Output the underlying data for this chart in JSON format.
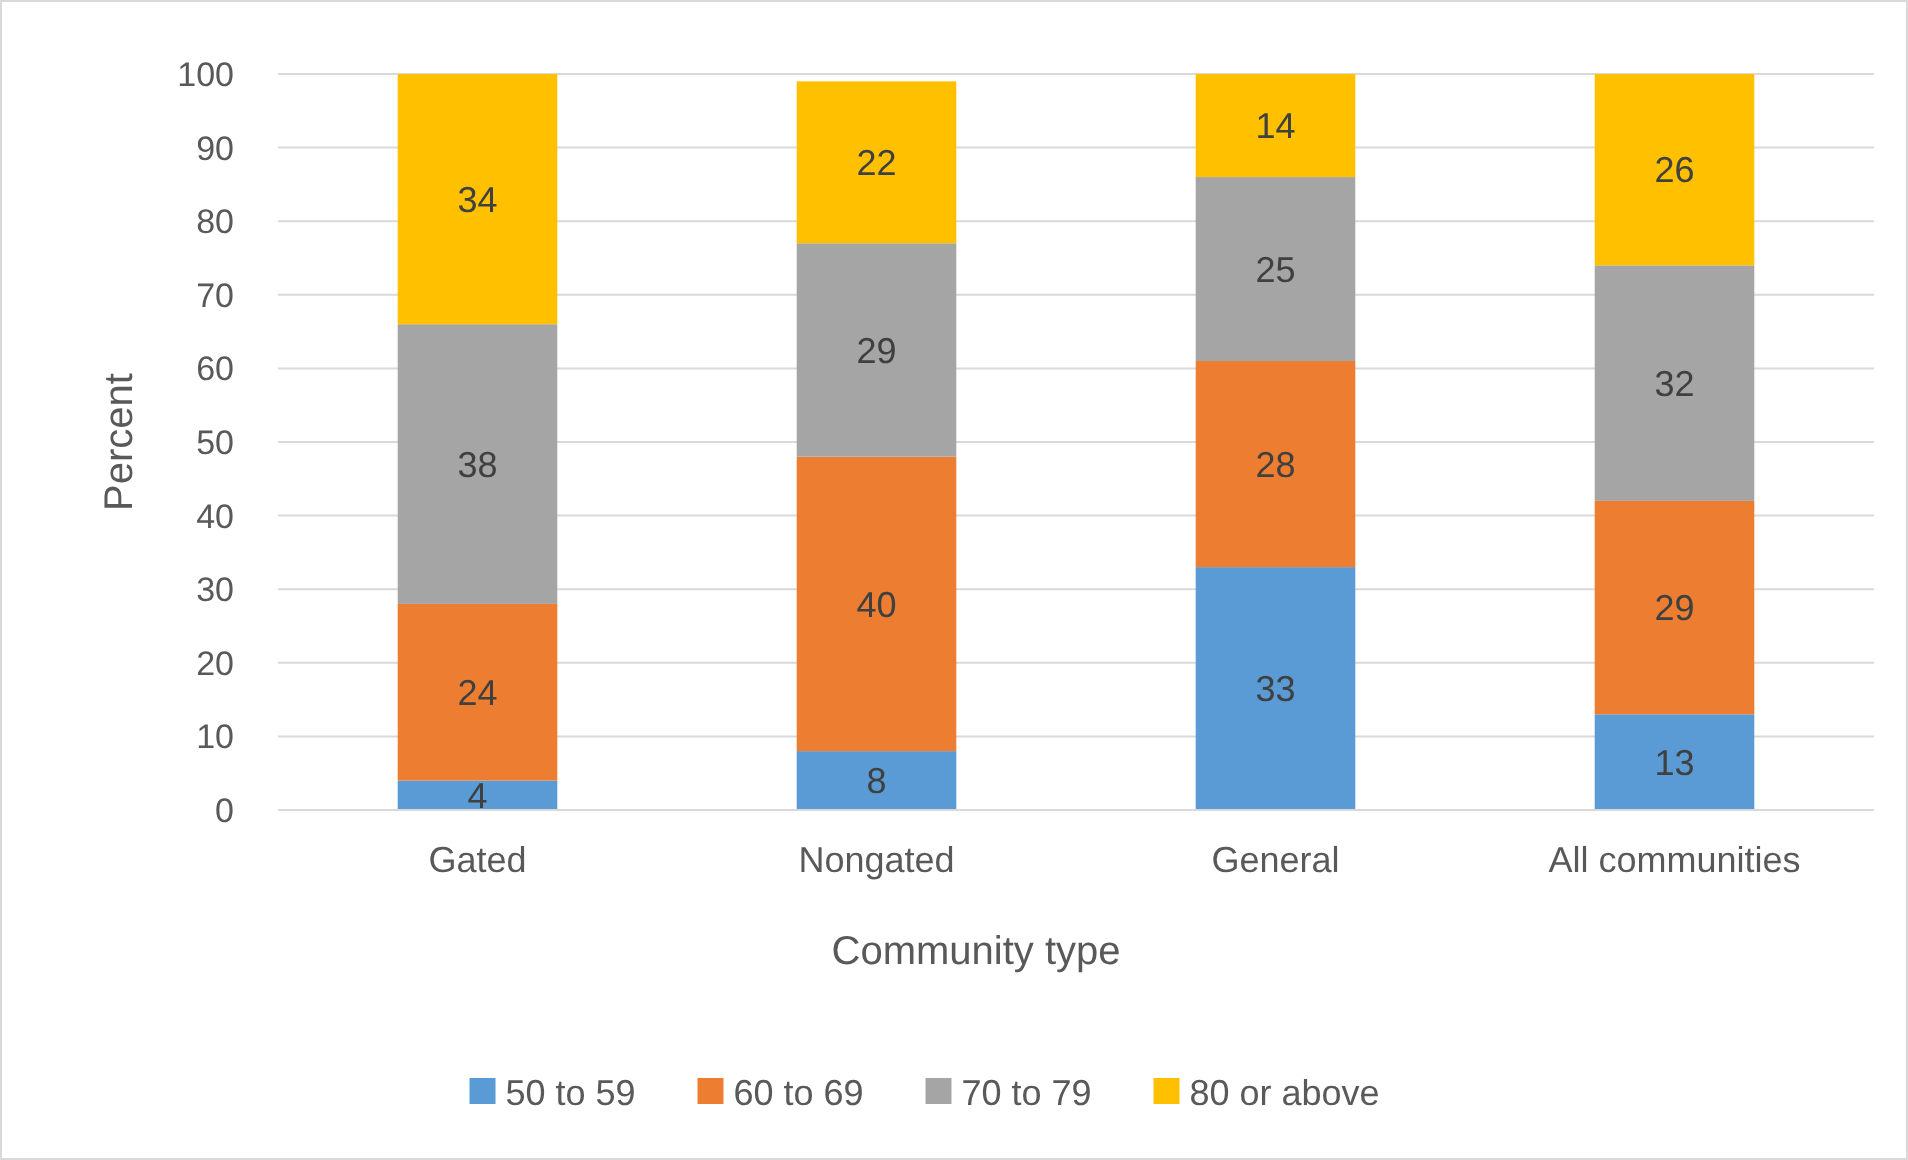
{
  "chart_data": {
    "type": "bar",
    "stacked": true,
    "xlabel": "Community type",
    "ylabel": "Percent",
    "categories": [
      "Gated",
      "Nongated",
      "General",
      "All communities"
    ],
    "series": [
      {
        "name": "50 to 59",
        "color": "#5b9bd5",
        "values": [
          4,
          8,
          33,
          13
        ]
      },
      {
        "name": "60 to 69",
        "color": "#ed7d31",
        "values": [
          24,
          40,
          28,
          29
        ]
      },
      {
        "name": "70 to 79",
        "color": "#a5a5a5",
        "values": [
          38,
          29,
          25,
          32
        ]
      },
      {
        "name": "80 or above",
        "color": "#ffc000",
        "values": [
          34,
          22,
          14,
          26
        ]
      }
    ],
    "ylim": [
      0,
      100
    ],
    "yticks": [
      0,
      10,
      20,
      30,
      40,
      50,
      60,
      70,
      80,
      90,
      100
    ],
    "grid": "y",
    "legend": "bottom",
    "data_labels": true
  }
}
